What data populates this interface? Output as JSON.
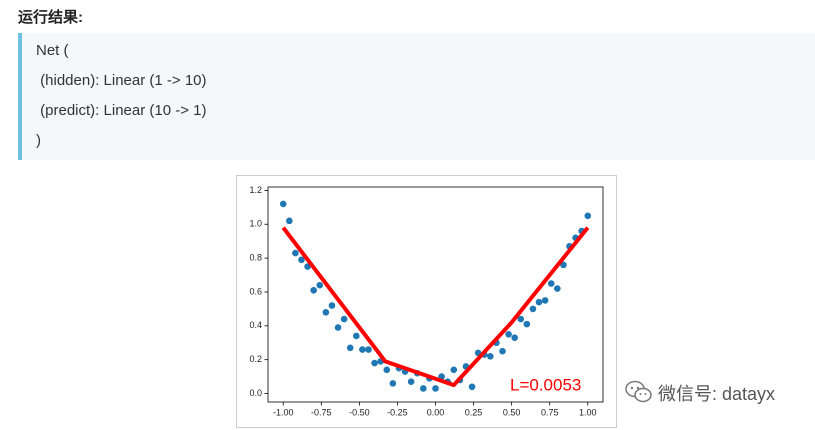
{
  "heading": "运行结果:",
  "code": {
    "lines": [
      "Net (",
      " (hidden): Linear (1 -> 10)",
      " (predict): Linear (10 -> 1)",
      ")"
    ]
  },
  "chart_data": {
    "type": "scatter",
    "color": "#1f77b4",
    "x": [
      -1.0,
      -0.96,
      -0.92,
      -0.88,
      -0.84,
      -0.8,
      -0.76,
      -0.72,
      -0.68,
      -0.64,
      -0.6,
      -0.56,
      -0.52,
      -0.48,
      -0.44,
      -0.4,
      -0.36,
      -0.32,
      -0.28,
      -0.24,
      -0.2,
      -0.16,
      -0.12,
      -0.08,
      -0.04,
      0.0,
      0.04,
      0.08,
      0.12,
      0.16,
      0.2,
      0.24,
      0.28,
      0.32,
      0.36,
      0.4,
      0.44,
      0.48,
      0.52,
      0.56,
      0.6,
      0.64,
      0.68,
      0.72,
      0.76,
      0.8,
      0.84,
      0.88,
      0.92,
      0.96,
      1.0
    ],
    "y": [
      1.12,
      1.02,
      0.83,
      0.79,
      0.75,
      0.61,
      0.64,
      0.48,
      0.52,
      0.39,
      0.44,
      0.27,
      0.34,
      0.26,
      0.26,
      0.18,
      0.19,
      0.14,
      0.06,
      0.15,
      0.13,
      0.07,
      0.12,
      0.03,
      0.09,
      0.03,
      0.1,
      0.07,
      0.14,
      0.08,
      0.16,
      0.04,
      0.24,
      0.23,
      0.22,
      0.3,
      0.25,
      0.35,
      0.33,
      0.44,
      0.41,
      0.5,
      0.54,
      0.55,
      0.65,
      0.62,
      0.76,
      0.87,
      0.92,
      0.96,
      1.05
    ],
    "line": {
      "type": "line",
      "color": "#ff0000",
      "x": [
        -1.0,
        -0.33,
        0.12,
        0.5,
        1.0
      ],
      "y": [
        0.98,
        0.19,
        0.05,
        0.42,
        0.98
      ]
    },
    "annotation": "L=0.0053",
    "xlim": [
      -1.1,
      1.1
    ],
    "ylim": [
      -0.05,
      1.22
    ],
    "xticks": [
      {
        "value": -1,
        "label": "-1.00"
      },
      {
        "value": -0.75,
        "label": "-0.75"
      },
      {
        "value": -0.5,
        "label": "-0.50"
      },
      {
        "value": -0.25,
        "label": "-0.25"
      },
      {
        "value": 0,
        "label": "0.00"
      },
      {
        "value": 0.25,
        "label": "0.25"
      },
      {
        "value": 0.5,
        "label": "0.50"
      },
      {
        "value": 0.75,
        "label": "0.75"
      },
      {
        "value": 1,
        "label": "1.00"
      }
    ],
    "yticks": [
      {
        "value": 0,
        "label": "0.0"
      },
      0.2,
      0.4,
      0.6,
      0.8,
      {
        "value": 1,
        "label": "1.0"
      },
      1.2
    ]
  },
  "watermark": "微信号: datayx"
}
